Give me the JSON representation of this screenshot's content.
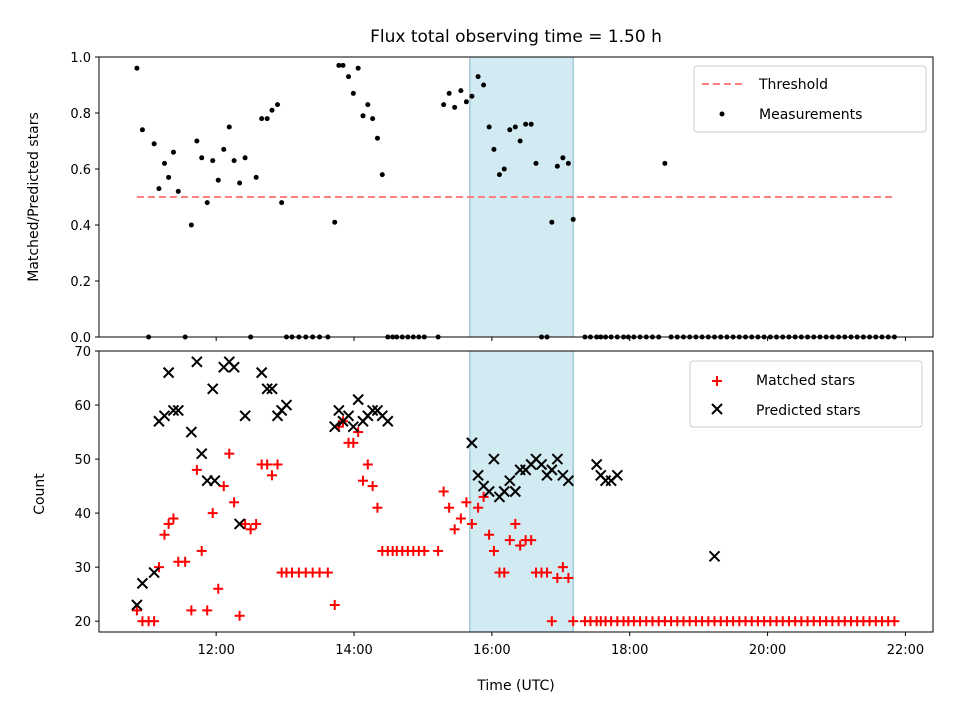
{
  "chart_data": [
    {
      "type": "scatter",
      "title": "Flux total observing time = 1.50 h",
      "xlabel": "",
      "ylabel": "Matched/Predicted stars",
      "ylim": [
        0,
        1.0
      ],
      "yticks": [
        "0.0",
        "0.2",
        "0.4",
        "0.6",
        "0.8",
        "1.0"
      ],
      "xlim": [
        10.3,
        22.4
      ],
      "xticks": [
        12,
        14,
        16,
        18,
        20,
        22
      ],
      "xtick_labels": [],
      "legend": {
        "position": "top-right",
        "entries": [
          "Threshold",
          "Measurements"
        ]
      },
      "shaded_interval": {
        "x": [
          15.68,
          17.18
        ],
        "color": "#add8e6"
      },
      "threshold": {
        "name": "Threshold",
        "y": 0.5,
        "x": [
          10.85,
          21.85
        ],
        "color": "#ff7f7f"
      },
      "series": [
        {
          "name": "Measurements",
          "color": "#000000",
          "x": [
            10.85,
            10.93,
            11.02,
            11.1,
            11.17,
            11.25,
            11.31,
            11.38,
            11.45,
            11.55,
            11.64,
            11.72,
            11.79,
            11.87,
            11.95,
            12.03,
            12.11,
            12.19,
            12.26,
            12.34,
            12.42,
            12.5,
            12.58,
            12.66,
            12.74,
            12.81,
            12.89,
            12.95,
            13.02,
            13.1,
            13.2,
            13.3,
            13.4,
            13.5,
            13.62,
            13.72,
            13.78,
            13.84,
            13.92,
            13.99,
            14.06,
            14.13,
            14.2,
            14.27,
            14.34,
            14.41,
            14.49,
            14.56,
            14.62,
            14.7,
            14.78,
            14.86,
            14.94,
            15.02,
            15.22,
            15.3,
            15.38,
            15.46,
            15.55,
            15.63,
            15.71,
            15.8,
            15.88,
            15.96,
            16.03,
            16.11,
            16.18,
            16.26,
            16.34,
            16.41,
            16.49,
            16.57,
            16.64,
            16.72,
            16.8,
            16.87,
            16.95,
            17.03,
            17.11,
            17.18,
            17.35,
            17.43,
            17.52,
            17.58,
            17.65,
            17.73,
            17.82,
            17.91,
            17.98,
            18.06,
            18.15,
            18.24,
            18.33,
            18.42,
            18.51,
            18.6,
            18.69,
            18.78,
            18.87,
            18.96,
            19.05,
            19.14,
            19.23,
            19.32,
            19.41,
            19.5,
            19.59,
            19.68,
            19.77,
            19.86,
            19.95,
            20.04,
            20.13,
            20.22,
            20.31,
            20.4,
            20.49,
            20.58,
            20.67,
            20.76,
            20.85,
            20.94,
            21.03,
            21.12,
            21.21,
            21.3,
            21.39,
            21.48,
            21.57,
            21.66,
            21.75,
            21.84
          ],
          "y": [
            0.96,
            0.74,
            0.0,
            0.69,
            0.53,
            0.62,
            0.57,
            0.66,
            0.52,
            0.0,
            0.4,
            0.7,
            0.64,
            0.48,
            0.63,
            0.56,
            0.67,
            0.75,
            0.63,
            0.55,
            0.64,
            0.0,
            0.57,
            0.78,
            0.78,
            0.81,
            0.83,
            0.48,
            0.0,
            0.0,
            0.0,
            0.0,
            0.0,
            0.0,
            0.0,
            0.41,
            0.97,
            0.97,
            0.93,
            0.87,
            0.96,
            0.79,
            0.83,
            0.78,
            0.71,
            0.58,
            0.0,
            0.0,
            0.0,
            0.0,
            0.0,
            0.0,
            0.0,
            0.0,
            0.0,
            0.83,
            0.87,
            0.82,
            0.88,
            0.84,
            0.86,
            0.93,
            0.9,
            0.75,
            0.67,
            0.58,
            0.6,
            0.74,
            0.75,
            0.7,
            0.76,
            0.76,
            0.62,
            0.0,
            0.0,
            0.41,
            0.61,
            0.64,
            0.62,
            0.42,
            0.0,
            0.0,
            0.0,
            0.0,
            0.0,
            0.0,
            0.0,
            0.0,
            0.0,
            0.0,
            0.0,
            0.0,
            0.0,
            0.0,
            0.62,
            0.0,
            0.0,
            0.0,
            0.0,
            0.0,
            0.0,
            0.0,
            0.0,
            0.0,
            0.0,
            0.0,
            0.0,
            0.0,
            0.0,
            0.0,
            0.0,
            0.0,
            0.0,
            0.0,
            0.0,
            0.0,
            0.0,
            0.0,
            0.0,
            0.0,
            0.0,
            0.0,
            0.0,
            0.0,
            0.0,
            0.0,
            0.0,
            0.0,
            0.0,
            0.0,
            0.0,
            0.0
          ]
        }
      ]
    },
    {
      "type": "scatter",
      "title": "",
      "xlabel": "Time (UTC)",
      "ylabel": "Count",
      "ylim": [
        18,
        70
      ],
      "yticks": [
        "20",
        "30",
        "40",
        "50",
        "60",
        "70"
      ],
      "xlim": [
        10.3,
        22.4
      ],
      "xticks": [
        12,
        14,
        16,
        18,
        20,
        22
      ],
      "xtick_labels": [
        "12:00",
        "14:00",
        "16:00",
        "18:00",
        "20:00",
        "22:00"
      ],
      "legend": {
        "position": "top-right",
        "entries": [
          "Matched stars",
          "Predicted stars"
        ]
      },
      "shaded_interval": {
        "x": [
          15.68,
          17.18
        ],
        "color": "#add8e6"
      },
      "series": [
        {
          "name": "Matched stars",
          "marker": "plus",
          "color": "#ff0000",
          "x": [
            10.85,
            10.93,
            11.02,
            11.1,
            11.17,
            11.25,
            11.31,
            11.38,
            11.45,
            11.55,
            11.64,
            11.72,
            11.79,
            11.87,
            11.95,
            12.03,
            12.11,
            12.19,
            12.26,
            12.34,
            12.42,
            12.5,
            12.58,
            12.66,
            12.74,
            12.81,
            12.89,
            12.95,
            13.02,
            13.1,
            13.2,
            13.3,
            13.4,
            13.5,
            13.62,
            13.72,
            13.78,
            13.84,
            13.92,
            13.99,
            14.06,
            14.13,
            14.2,
            14.27,
            14.34,
            14.41,
            14.49,
            14.56,
            14.62,
            14.7,
            14.78,
            14.86,
            14.94,
            15.02,
            15.22,
            15.3,
            15.38,
            15.46,
            15.55,
            15.63,
            15.71,
            15.8,
            15.88,
            15.96,
            16.03,
            16.11,
            16.18,
            16.26,
            16.34,
            16.41,
            16.49,
            16.57,
            16.64,
            16.72,
            16.8,
            16.87,
            16.95,
            17.03,
            17.11,
            17.18,
            17.35,
            17.43,
            17.52,
            17.58,
            17.65,
            17.73,
            17.82,
            17.91,
            17.98,
            18.06,
            18.15,
            18.24,
            18.33,
            18.42,
            18.51,
            18.6,
            18.69,
            18.78,
            18.87,
            18.96,
            19.05,
            19.14,
            19.23,
            19.32,
            19.41,
            19.5,
            19.59,
            19.68,
            19.77,
            19.86,
            19.95,
            20.04,
            20.13,
            20.22,
            20.31,
            20.4,
            20.49,
            20.58,
            20.67,
            20.76,
            20.85,
            20.94,
            21.03,
            21.12,
            21.21,
            21.3,
            21.39,
            21.48,
            21.57,
            21.66,
            21.75,
            21.84
          ],
          "y": [
            22,
            20,
            20,
            20,
            30,
            36,
            38,
            39,
            31,
            31,
            22,
            48,
            33,
            22,
            40,
            26,
            45,
            51,
            42,
            21,
            38,
            37,
            38,
            49,
            49,
            47,
            49,
            29,
            29,
            29,
            29,
            29,
            29,
            29,
            29,
            23,
            56,
            57,
            53,
            53,
            55,
            46,
            49,
            45,
            41,
            33,
            33,
            33,
            33,
            33,
            33,
            33,
            33,
            33,
            33,
            44,
            41,
            37,
            39,
            42,
            38,
            41,
            43,
            36,
            33,
            29,
            29,
            35,
            38,
            34,
            35,
            35,
            29,
            29,
            29,
            20,
            28,
            30,
            28,
            20,
            20,
            20,
            20,
            20,
            20,
            20,
            20,
            20,
            20,
            20,
            20,
            20,
            20,
            20,
            20,
            20,
            20,
            20,
            20,
            20,
            20,
            20,
            20,
            20,
            20,
            20,
            20,
            20,
            20,
            20,
            20,
            20,
            20,
            20,
            20,
            20,
            20,
            20,
            20,
            20,
            20,
            20,
            20,
            20,
            20,
            20,
            20,
            20,
            20,
            20,
            20,
            20
          ]
        },
        {
          "name": "Predicted stars",
          "marker": "x",
          "color": "#000000",
          "x": [
            10.85,
            10.93,
            11.1,
            11.17,
            11.25,
            11.31,
            11.38,
            11.45,
            11.64,
            11.72,
            11.79,
            11.87,
            11.95,
            11.98,
            12.11,
            12.19,
            12.26,
            12.34,
            12.42,
            12.66,
            12.74,
            12.81,
            12.89,
            12.95,
            13.02,
            13.72,
            13.78,
            13.84,
            13.92,
            13.99,
            14.06,
            14.13,
            14.2,
            14.27,
            14.34,
            14.41,
            14.49,
            15.71,
            15.8,
            15.88,
            15.96,
            16.03,
            16.11,
            16.18,
            16.26,
            16.34,
            16.41,
            16.49,
            16.57,
            16.64,
            16.72,
            16.8,
            16.87,
            16.95,
            17.03,
            17.11,
            17.52,
            17.58,
            17.65,
            17.73,
            17.82,
            19.23
          ],
          "y": [
            23,
            27,
            29,
            57,
            58,
            66,
            59,
            59,
            55,
            68,
            51,
            46,
            63,
            46,
            67,
            68,
            67,
            38,
            58,
            66,
            63,
            63,
            58,
            59,
            60,
            56,
            59,
            57,
            58,
            56,
            61,
            57,
            58,
            59,
            59,
            58,
            57,
            53,
            47,
            45,
            44,
            50,
            43,
            44,
            46,
            44,
            48,
            48,
            49,
            50,
            49,
            47,
            48,
            50,
            47,
            46,
            49,
            47,
            46,
            46,
            47,
            32
          ]
        }
      ]
    }
  ]
}
